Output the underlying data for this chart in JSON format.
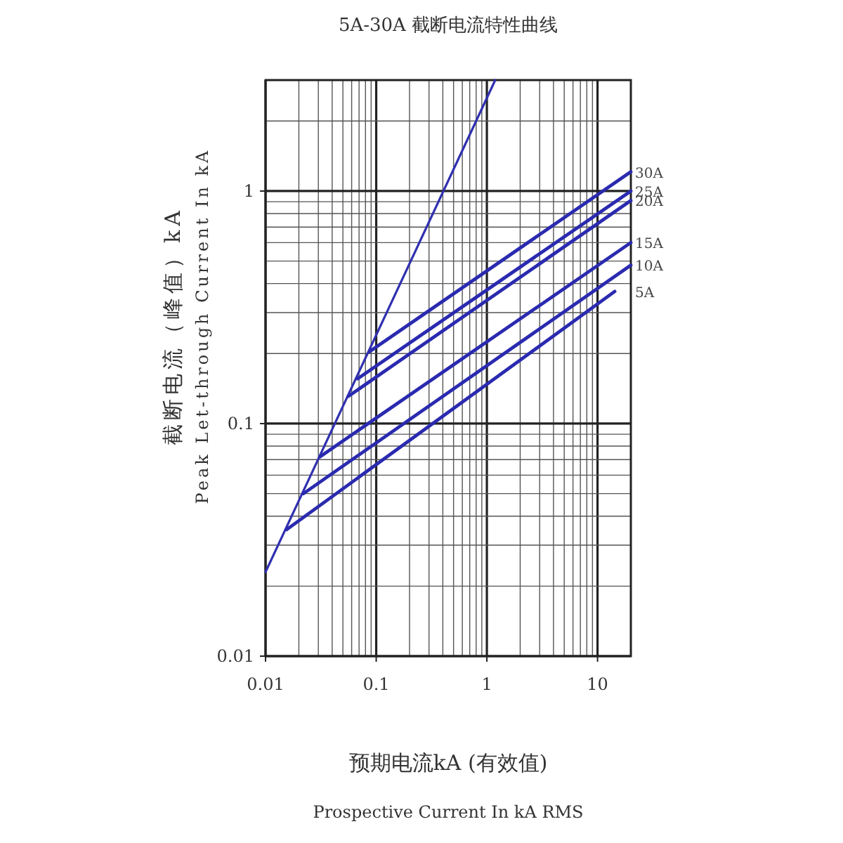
{
  "chart_data": {
    "type": "line",
    "title": "5A-30A 截断电流特性曲线",
    "xlabel": "预期电流kA (有效值)\nProspective Current In kA RMS",
    "ylabel": "截断电流（峰值）kA\nPeak Let-through Current In kA",
    "log": "xy",
    "grid": true,
    "marker": "none",
    "line_style": "solid",
    "xlim": [
      0.01,
      20
    ],
    "xticks": [
      0.01,
      0.1,
      1,
      10
    ],
    "ylim": [
      0.01,
      3
    ],
    "yticks": [
      0.01,
      0.1,
      1
    ],
    "series": [
      {
        "color": "#3030b0",
        "x": [
          0.01,
          1.19
        ],
        "values": [
          0.023,
          3
        ]
      },
      {
        "name": "30A",
        "color": "#2a2ab0",
        "x": [
          0.087,
          20
        ],
        "values": [
          0.204,
          1.21
        ]
      },
      {
        "name": "25A",
        "color": "#2a2ab0",
        "x": [
          0.068,
          20
        ],
        "values": [
          0.156,
          1.0
        ]
      },
      {
        "name": "20A",
        "color": "#2a2ab0",
        "x": [
          0.056,
          20
        ],
        "values": [
          0.131,
          0.91
        ]
      },
      {
        "name": "15A",
        "color": "#2a2ab0",
        "x": [
          0.031,
          20
        ],
        "values": [
          0.072,
          0.6
        ]
      },
      {
        "name": "10A",
        "color": "#2a2ab0",
        "x": [
          0.022,
          20
        ],
        "values": [
          0.05,
          0.48
        ]
      },
      {
        "name": "5A",
        "color": "#2a2ab0",
        "x": [
          0.0155,
          14.3
        ],
        "values": [
          0.035,
          0.37
        ]
      }
    ]
  }
}
